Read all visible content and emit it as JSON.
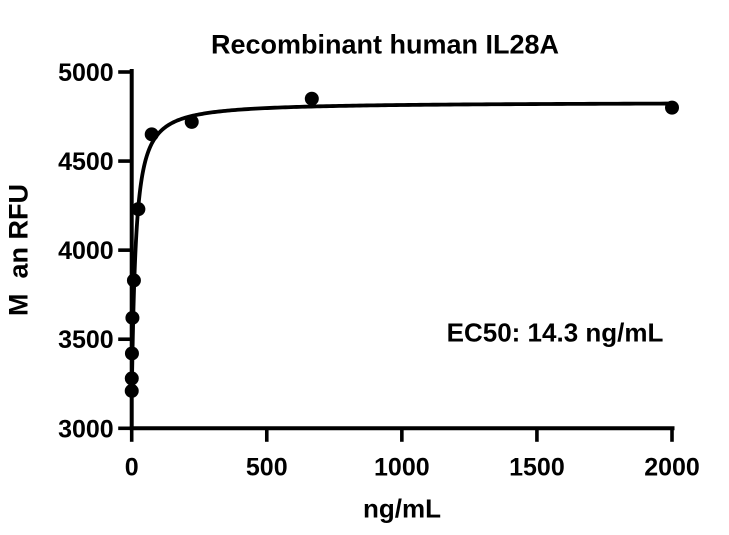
{
  "chart_data": {
    "type": "scatter",
    "title": "Recombinant human IL28A",
    "xlabel": "ng/mL",
    "ylabel": "M  an RFU",
    "annotation": "EC50: 14.3 ng/mL",
    "series": [
      {
        "name": "Recombinant human IL28A",
        "x": [
          0.1,
          0.3,
          0.9,
          2.7,
          8.2,
          24.7,
          74.1,
          222.2,
          666.7,
          2000
        ],
        "y": [
          3210,
          3280,
          3420,
          3620,
          3830,
          4230,
          4650,
          4720,
          4850,
          4800
        ]
      }
    ],
    "fit_curve": {
      "model": "4PL sigmoidal dose-response",
      "ec50": 14.3,
      "bottom": 3180,
      "top": 4830,
      "hill": 1.1
    },
    "xlim": [
      0,
      2000
    ],
    "ylim": [
      3000,
      5000
    ],
    "xticks": [
      0,
      500,
      1000,
      1500,
      2000
    ],
    "yticks": [
      3000,
      3500,
      4000,
      4500,
      5000
    ],
    "grid": false,
    "legend": "none",
    "marker": {
      "shape": "circle",
      "color": "#000000"
    },
    "ink_color": "#000000",
    "background_color": "#ffffff"
  }
}
